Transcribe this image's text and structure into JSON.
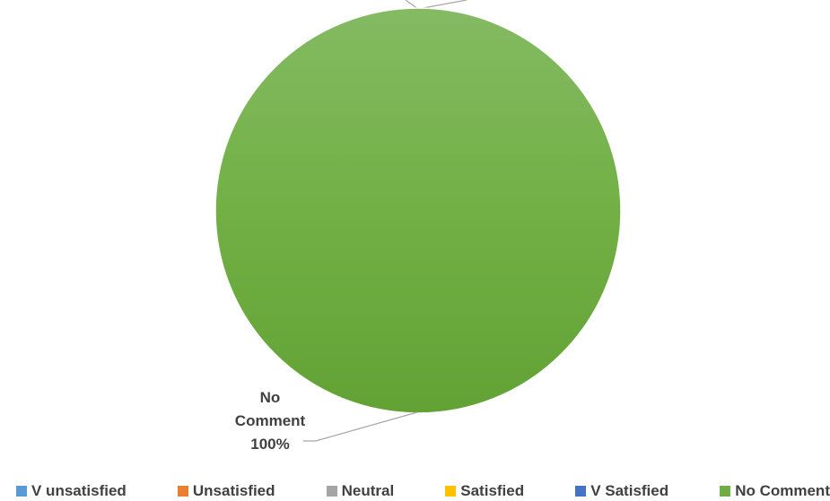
{
  "chart_data": {
    "type": "pie",
    "title": "",
    "categories": [
      "V unsatisfied",
      "Unsatisfied",
      "Neutral",
      "Satisfied",
      "V Satisfied",
      "No Comment"
    ],
    "values": [
      0,
      0,
      0,
      0,
      0,
      100
    ],
    "colors": [
      "#5B9BD5",
      "#ED7D31",
      "#A5A5A5",
      "#FFC000",
      "#4472C4",
      "#70AD47"
    ],
    "data_labels": [
      {
        "category": "No Comment",
        "line1": "No",
        "line2": "Comment",
        "percent": "100%"
      }
    ],
    "legend": {
      "placement": "bottom",
      "entries": [
        {
          "label": "V unsatisfied",
          "color": "#5B9BD5"
        },
        {
          "label": "Unsatisfied",
          "color": "#ED7D31"
        },
        {
          "label": "Neutral",
          "color": "#A5A5A5"
        },
        {
          "label": "Satisfied",
          "color": "#FFC000"
        },
        {
          "label": "V Satisfied",
          "color": "#4472C4"
        },
        {
          "label": "No Comment",
          "color": "#70AD47"
        }
      ]
    }
  }
}
